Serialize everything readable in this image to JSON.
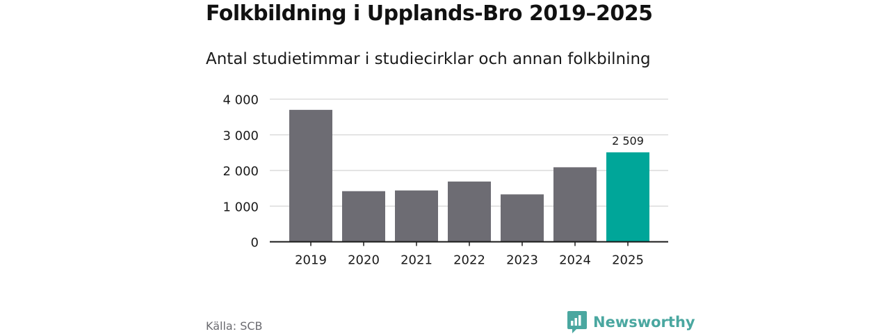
{
  "title": "Folkbildning i Upplands-Bro 2019–2025",
  "subtitle": "Antal studietimmar i studiecirklar och annan folkbilning",
  "source": "Källa: SCB",
  "brand": {
    "name": "Newsworthy",
    "icon": "newsworthy-logo-icon",
    "color": "#4aa7a0"
  },
  "colors": {
    "bar": "#6d6c73",
    "highlight": "#00a699",
    "grid": "#dcdcdc",
    "axis": "#1a1a1a",
    "text": "#1a1a1a"
  },
  "chart_data": {
    "type": "bar",
    "categories": [
      "2019",
      "2020",
      "2021",
      "2022",
      "2023",
      "2024",
      "2025"
    ],
    "values": [
      3700,
      1420,
      1440,
      1690,
      1330,
      2090,
      2509
    ],
    "highlight_index": 6,
    "data_labels": [
      "",
      "",
      "",
      "",
      "",
      "",
      "2 509"
    ],
    "ylim": [
      0,
      4000
    ],
    "yticks": [
      0,
      1000,
      2000,
      3000,
      4000
    ],
    "ytick_labels": [
      "0",
      "1 000",
      "2 000",
      "3 000",
      "4 000"
    ],
    "grid": true,
    "legend": "none",
    "xlabel": "",
    "ylabel": ""
  }
}
